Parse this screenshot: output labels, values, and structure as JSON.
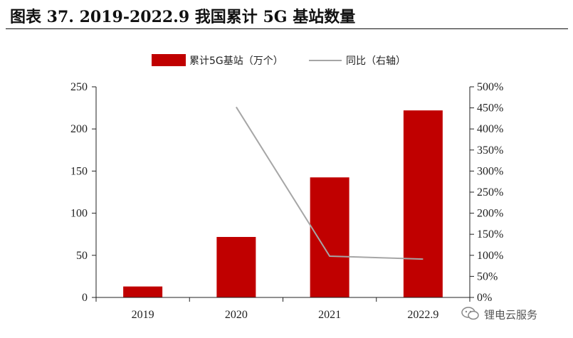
{
  "page": {
    "title": "图表 37. 2019-2022.9 我国累计 5G 基站数量",
    "watermark": "锂电云服务",
    "watermark_icon": "wechat-icon"
  },
  "chart_data": {
    "type": "bar",
    "categories": [
      "2019",
      "2020",
      "2021",
      "2022.9"
    ],
    "series": [
      {
        "name": "累计5G基站（万个）",
        "type": "bar",
        "axis": "left",
        "color": "#C00000",
        "values": [
          13,
          71.8,
          142.5,
          222
        ]
      },
      {
        "name": "同比（右轴）",
        "type": "line",
        "axis": "right",
        "color": "#A6A6A6",
        "values": [
          null,
          452,
          98,
          91
        ]
      }
    ],
    "y_left": {
      "min": 0,
      "max": 250,
      "ticks": [
        "0",
        "50",
        "100",
        "150",
        "200",
        "250"
      ]
    },
    "y_right": {
      "min": 0,
      "max": 500,
      "ticks": [
        "0%",
        "50%",
        "100%",
        "150%",
        "200%",
        "250%",
        "300%",
        "350%",
        "400%",
        "450%",
        "500%"
      ]
    },
    "legend": {
      "position": "top",
      "items": [
        "累计5G基站（万个）",
        "同比（右轴）"
      ]
    },
    "grid": false
  }
}
